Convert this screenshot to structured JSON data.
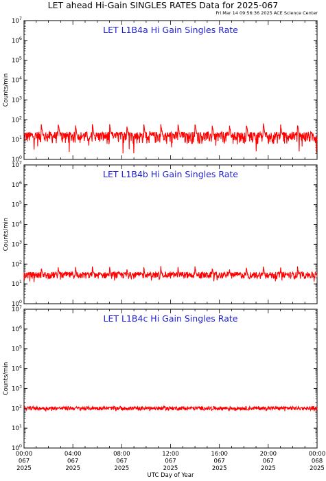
{
  "figure": {
    "title": "LET ahead Hi-Gain SINGLES RATES Data for 2025-067",
    "timestamp": "Fri Mar 14 09:56:36 2025 ACE Science Center",
    "xlabel": "UTC Day of Year"
  },
  "colors": {
    "trace": "#ff0000",
    "panel_title": "#1f1fd6",
    "axis": "#000000"
  },
  "chart_data": [
    {
      "type": "line",
      "title": "LET L1B4a Hi Gain Singles Rate",
      "ylabel": "Counts/min",
      "yscale": "log",
      "ylim": [
        1,
        10000000
      ],
      "yticks": [
        "10^0",
        "10^1",
        "10^2",
        "10^3",
        "10^4",
        "10^5",
        "10^6",
        "10^7"
      ],
      "x_ticks": [
        "00:00|067|2025",
        "04:00|067|2025",
        "08:00|067|2025",
        "12:00|067|2025",
        "16:00|067|2025",
        "20:00|067|2025",
        "00:00|068|2025"
      ],
      "xlim": [
        "2025-067 00:00",
        "2025-068 00:00"
      ],
      "series": [
        {
          "baseline": 14,
          "noise_range": [
            6,
            25
          ],
          "spike_peak": 60,
          "spike_hours": [
            1.4,
            2.8,
            4.2,
            5.6,
            7.0,
            8.4,
            9.8,
            11.2,
            12.6,
            14.0,
            15.4,
            16.8,
            18.2,
            19.6,
            21.0,
            22.4
          ],
          "dip_min": 2
        }
      ]
    },
    {
      "type": "line",
      "title": "LET L1B4b Hi Gain Singles Rate",
      "ylabel": "Counts/min",
      "yscale": "log",
      "ylim": [
        1,
        10000000
      ],
      "yticks": [
        "10^0",
        "10^1",
        "10^2",
        "10^3",
        "10^4",
        "10^5",
        "10^6",
        "10^7"
      ],
      "x_ticks": [
        "00:00|067|2025",
        "04:00|067|2025",
        "08:00|067|2025",
        "12:00|067|2025",
        "16:00|067|2025",
        "20:00|067|2025",
        "00:00|068|2025"
      ],
      "xlim": [
        "2025-067 00:00",
        "2025-068 00:00"
      ],
      "series": [
        {
          "baseline": 27,
          "noise_range": [
            18,
            40
          ],
          "spike_peak": 70,
          "spike_hours": [
            1.4,
            2.8,
            4.2,
            5.6,
            7.0,
            8.4,
            9.8,
            11.2,
            12.6,
            14.0,
            15.4,
            16.8,
            18.2,
            19.6,
            21.0,
            22.4
          ],
          "dip_min": 12
        }
      ]
    },
    {
      "type": "line",
      "title": "LET L1B4c Hi Gain Singles Rate",
      "ylabel": "Counts/min",
      "yscale": "log",
      "ylim": [
        1,
        10000000
      ],
      "yticks": [
        "10^0",
        "10^1",
        "10^2",
        "10^3",
        "10^4",
        "10^5",
        "10^6",
        "10^7"
      ],
      "x_ticks": [
        "00:00|067|2025",
        "04:00|067|2025",
        "08:00|067|2025",
        "12:00|067|2025",
        "16:00|067|2025",
        "20:00|067|2025",
        "00:00|068|2025"
      ],
      "xlim": [
        "2025-067 00:00",
        "2025-068 00:00"
      ],
      "series": [
        {
          "baseline": 100,
          "noise_range": [
            80,
            125
          ],
          "spike_peak": 130,
          "spike_hours": [],
          "dip_min": 70
        }
      ]
    }
  ]
}
